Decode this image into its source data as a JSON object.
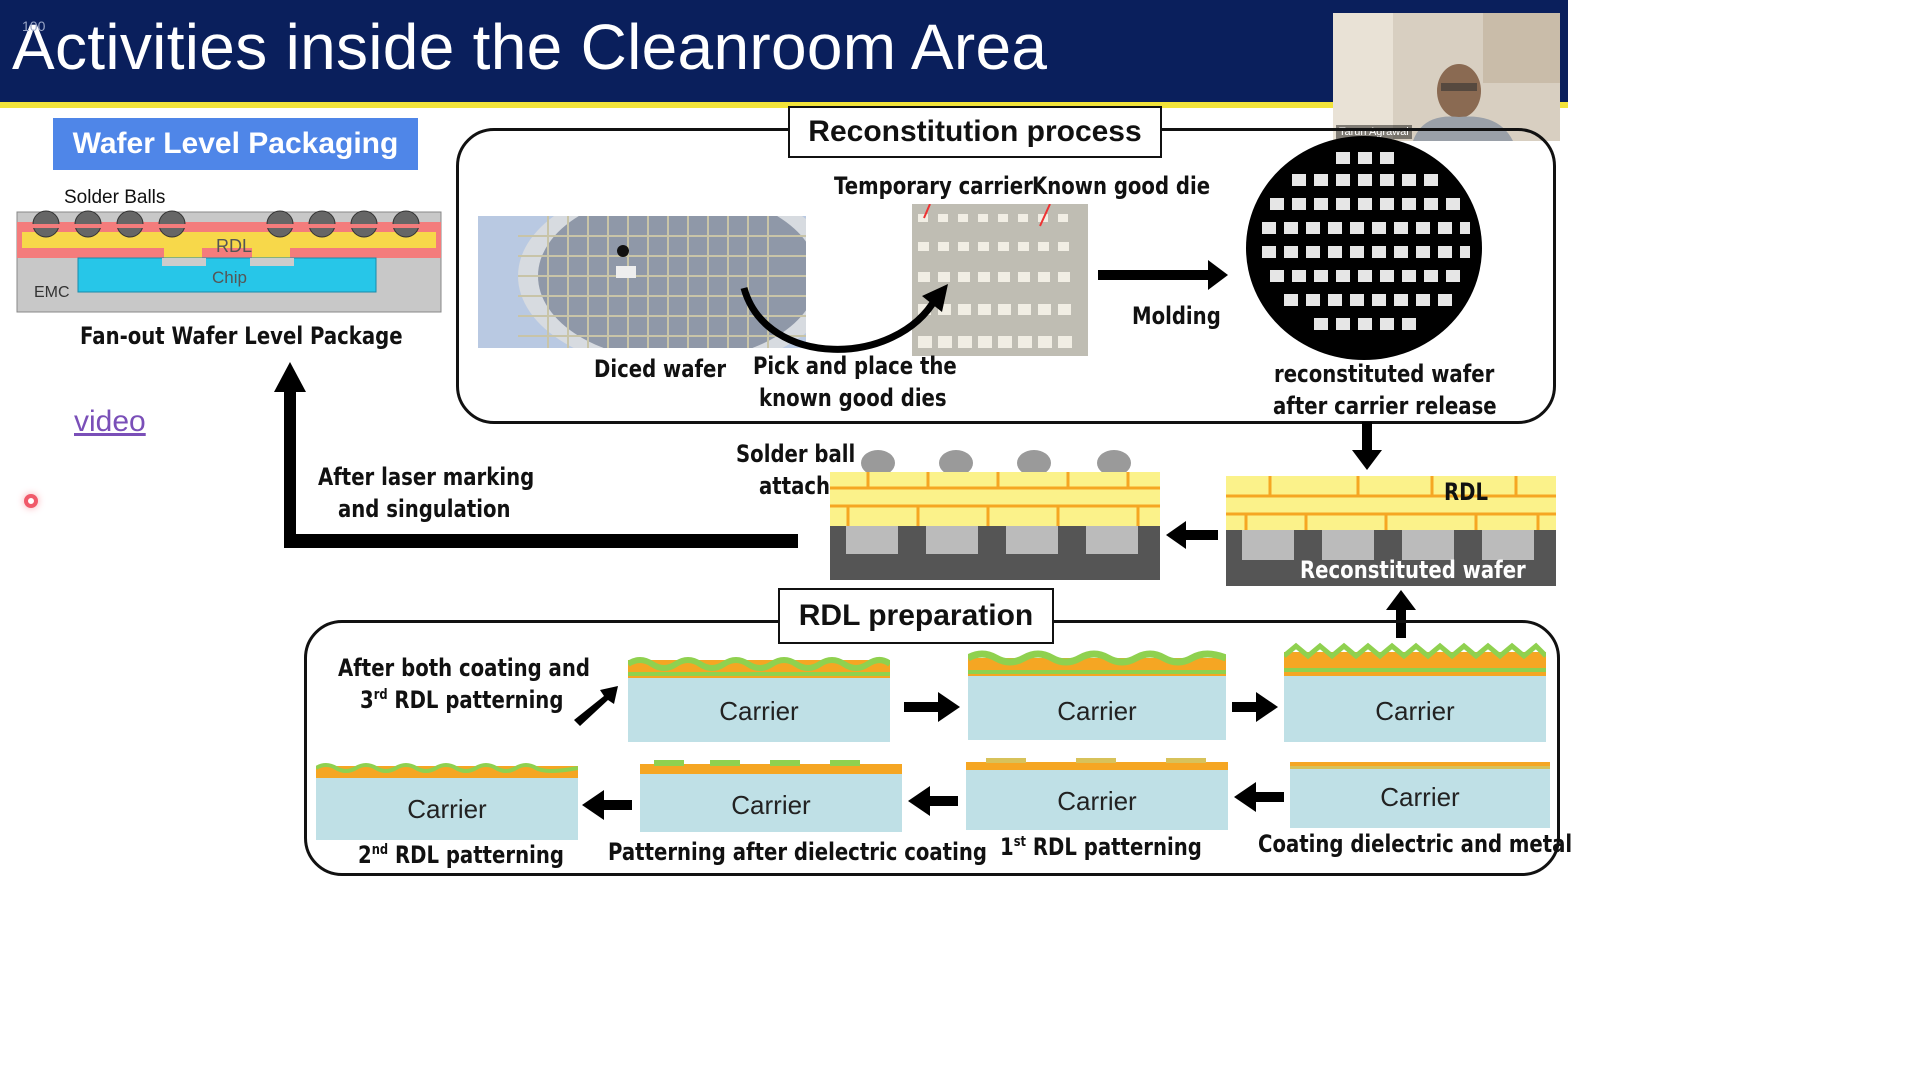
{
  "slide": {
    "title": "Activities inside the Cleanroom Area",
    "slide_number": "100",
    "video_link": "video"
  },
  "webcam": {
    "participant_name": "Tarun Agrawal"
  },
  "wlp": {
    "heading": "Wafer Level Packaging",
    "solder_balls": "Solder Balls",
    "rdl": "RDL",
    "chip": "Chip",
    "emc": "EMC",
    "caption": "Fan-out Wafer Level Package"
  },
  "reconstitution": {
    "title": "Reconstitution process",
    "temporary_carrier": "Temporary carrier",
    "known_good_die": "Known good die",
    "diced_wafer": "Diced wafer",
    "pick_place_line1": "Pick and place the",
    "pick_place_line2": "known good dies",
    "molding": "Molding",
    "reconstituted_line1": "reconstituted wafer",
    "reconstituted_line2": "after carrier release"
  },
  "middle": {
    "laser_line1": "After laser marking",
    "laser_line2": "and singulation",
    "solder_line1": "Solder ball",
    "solder_line2": "attach",
    "rdl": "RDL",
    "reconstituted_wafer": "Reconstituted wafer"
  },
  "rdl_prep": {
    "title": "RDL preparation",
    "after_both_line1": "After both coating and",
    "after_both_num": "3",
    "after_both_sup": "rd",
    "after_both_rest": " RDL patterning",
    "carrier": "Carrier",
    "second_num": "2",
    "second_sup": "nd",
    "second_rest": " RDL patterning",
    "patterning_after": "Patterning after dielectric coating",
    "first_num": "1",
    "first_sup": "st",
    "first_rest": " RDL patterning",
    "coating": "Coating dielectric and metal"
  },
  "colors": {
    "header_bg": "#0a1f5c",
    "header_accent": "#f2e33a",
    "wlp_box": "#4f86e8",
    "carrier": "#bfe0e6",
    "rdl_yellow": "#fbf28a",
    "rdl_orange": "#f5a623",
    "dielectric_green": "#8fd14f"
  },
  "icons": [
    "arrow-right-icon",
    "arrow-left-icon",
    "arrow-up-icon",
    "arrow-down-icon",
    "recording-dot-icon"
  ]
}
